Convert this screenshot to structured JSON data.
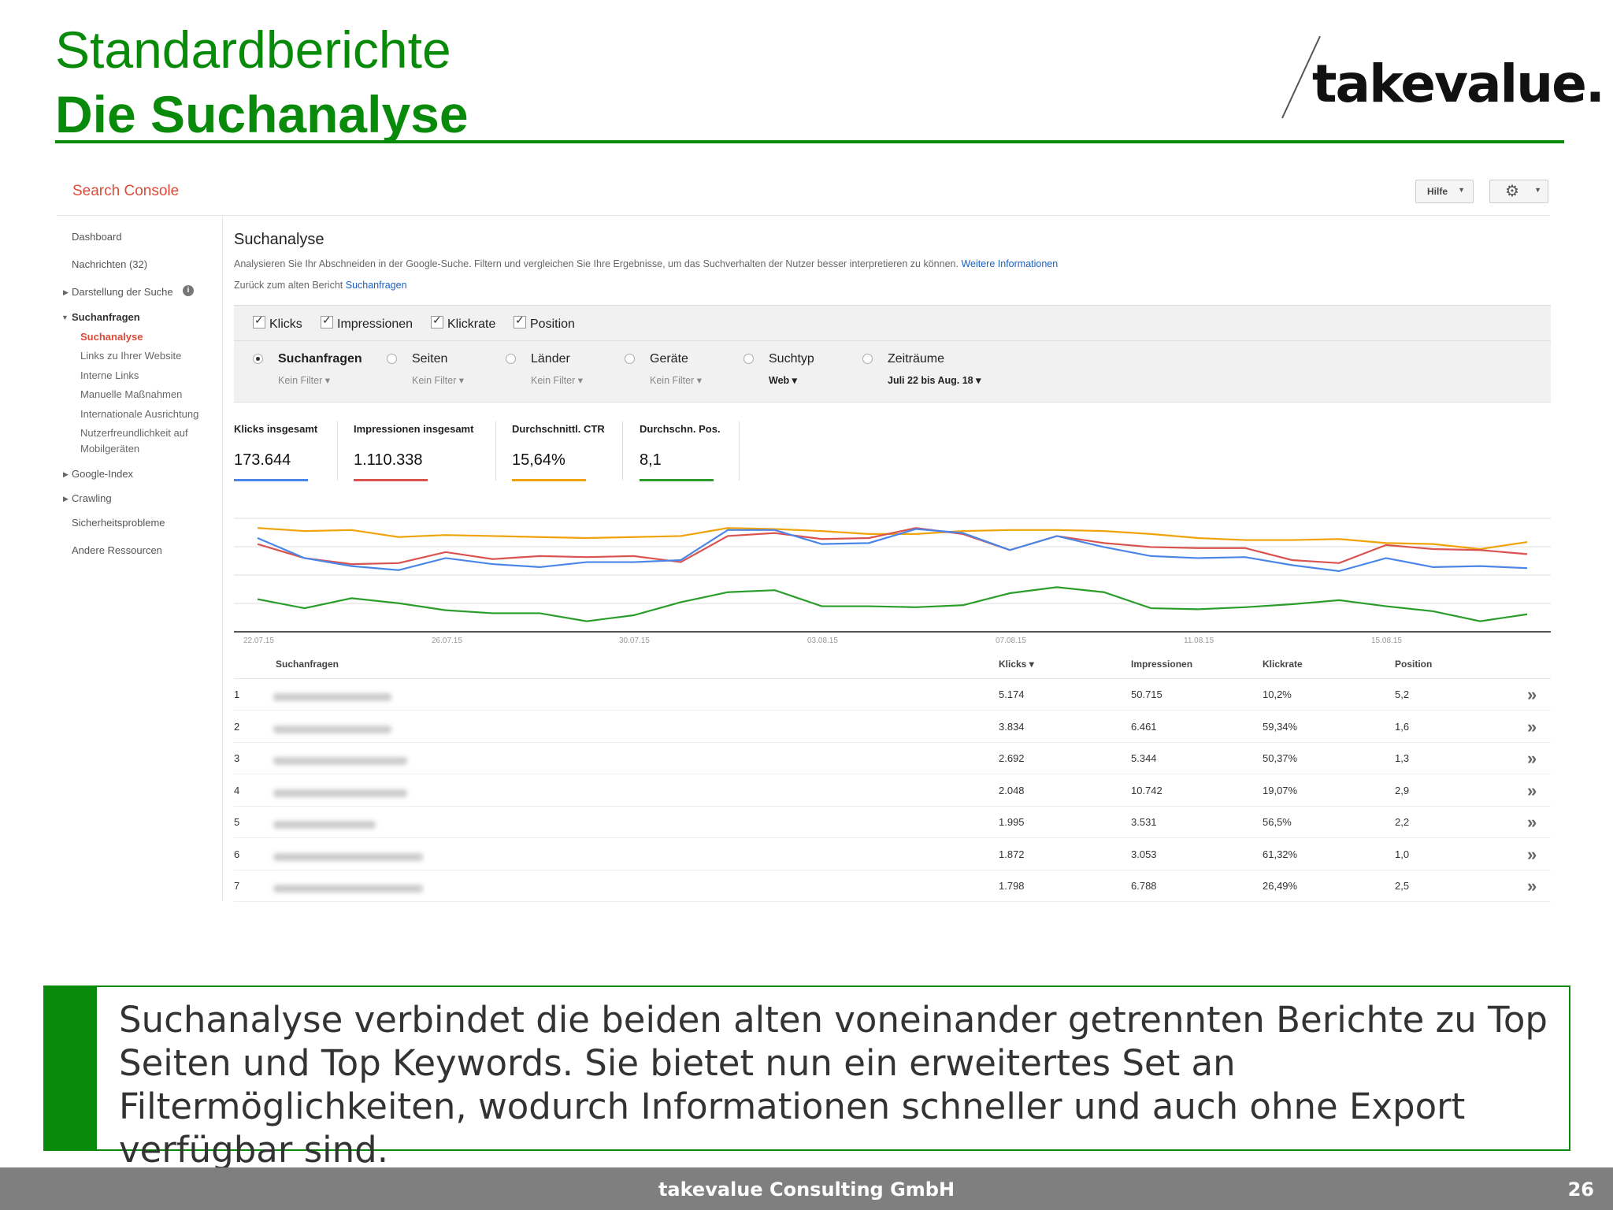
{
  "slide": {
    "title_line1": "Standardberichte",
    "title_line2": "Die Suchanalyse",
    "logo_text": "takevalue.",
    "callout": "Suchanalyse verbindet die beiden alten voneinander getrennten Berichte zu Top Seiten und Top Keywords. Sie bietet nun ein erweitertes Set an Filtermöglichkeiten, wodurch Informationen schneller und auch ohne Export verfügbar sind.",
    "footer": "takevalue Consulting GmbH",
    "page_number": "26",
    "accent_color": "#0a8a0a"
  },
  "console": {
    "brand": "Search Console",
    "help_label": "Hilfe",
    "settings_icon": "gear-icon"
  },
  "sidebar": {
    "dashboard": "Dashboard",
    "messages": "Nachrichten (32)",
    "search_appearance": "Darstellung der Suche",
    "search_traffic": "Suchanfragen",
    "search_analysis": "Suchanalyse",
    "links": "Links zu Ihrer Website",
    "internal_links": "Interne Links",
    "manual_actions": "Manuelle Maßnahmen",
    "intl_targeting": "Internationale Ausrichtung",
    "mobile_line1": "Nutzerfreundlichkeit auf",
    "mobile_line2": "Mobilgeräten",
    "google_index": "Google-Index",
    "crawling": "Crawling",
    "security": "Sicherheitsprobleme",
    "other": "Andere Ressourcen"
  },
  "main": {
    "title": "Suchanalyse",
    "description": "Analysieren Sie Ihr Abschneiden in der Google-Suche. Filtern und vergleichen Sie Ihre Ergebnisse, um das Suchverhalten der Nutzer besser interpretieren zu können.",
    "more_info": "Weitere Informationen",
    "back_text": "Zurück zum alten Bericht",
    "back_link": "Suchanfragen"
  },
  "metrics": {
    "clicks": "Klicks",
    "impressions": "Impressionen",
    "ctr": "Klickrate",
    "position": "Position"
  },
  "dimensions": {
    "queries": {
      "label": "Suchanfragen",
      "filter": "Kein Filter"
    },
    "pages": {
      "label": "Seiten",
      "filter": "Kein Filter"
    },
    "countries": {
      "label": "Länder",
      "filter": "Kein Filter"
    },
    "devices": {
      "label": "Geräte",
      "filter": "Kein Filter"
    },
    "search_type": {
      "label": "Suchtyp",
      "filter": "Web"
    },
    "dates": {
      "label": "Zeiträume",
      "filter": "Juli 22 bis Aug. 18"
    }
  },
  "totals": {
    "clicks_label": "Klicks insgesamt",
    "clicks_value": "173.644",
    "clicks_color": "#4a86e8",
    "impr_label": "Impressionen insgesamt",
    "impr_value": "1.110.338",
    "impr_color": "#d9534f",
    "ctr_label": "Durchschnittl. CTR",
    "ctr_value": "15,64%",
    "ctr_color": "#f0a30a",
    "pos_label": "Durchschn. Pos.",
    "pos_value": "8,1",
    "pos_color": "#2a9d2a"
  },
  "chart_data": {
    "type": "line",
    "x_tick_labels": [
      "22.07.15",
      "26.07.15",
      "30.07.15",
      "03.08.15",
      "07.08.15",
      "11.08.15",
      "15.08.15"
    ],
    "x": [
      "22.07.15",
      "23.07.15",
      "24.07.15",
      "25.07.15",
      "26.07.15",
      "27.07.15",
      "28.07.15",
      "29.07.15",
      "30.07.15",
      "31.07.15",
      "01.08.15",
      "02.08.15",
      "03.08.15",
      "04.08.15",
      "05.08.15",
      "06.08.15",
      "07.08.15",
      "08.08.15",
      "09.08.15",
      "10.08.15",
      "11.08.15",
      "12.08.15",
      "13.08.15",
      "14.08.15",
      "15.08.15",
      "16.08.15",
      "17.08.15",
      "18.08.15"
    ],
    "series": [
      {
        "color": "#f0a30a",
        "values": [
          0.88,
          0.85,
          0.86,
          0.79,
          0.81,
          0.8,
          0.79,
          0.78,
          0.79,
          0.8,
          0.88,
          0.87,
          0.85,
          0.82,
          0.82,
          0.85,
          0.86,
          0.86,
          0.85,
          0.82,
          0.78,
          0.76,
          0.76,
          0.77,
          0.73,
          0.72,
          0.67,
          0.74
        ]
      },
      {
        "color": "#d9534f",
        "values": [
          0.72,
          0.58,
          0.52,
          0.53,
          0.64,
          0.57,
          0.6,
          0.59,
          0.6,
          0.54,
          0.8,
          0.83,
          0.77,
          0.78,
          0.88,
          0.82,
          0.66,
          0.8,
          0.73,
          0.69,
          0.68,
          0.68,
          0.56,
          0.53,
          0.71,
          0.67,
          0.66,
          0.62
        ]
      },
      {
        "color": "#4a86e8",
        "values": [
          0.78,
          0.58,
          0.5,
          0.46,
          0.58,
          0.52,
          0.49,
          0.54,
          0.54,
          0.56,
          0.86,
          0.86,
          0.72,
          0.73,
          0.87,
          0.83,
          0.66,
          0.8,
          0.69,
          0.6,
          0.58,
          0.59,
          0.51,
          0.45,
          0.58,
          0.49,
          0.5,
          0.48
        ]
      },
      {
        "color": "#2a9d2a",
        "values": [
          0.17,
          0.08,
          0.18,
          0.13,
          0.06,
          0.03,
          0.03,
          -0.05,
          0.01,
          0.14,
          0.24,
          0.26,
          0.1,
          0.1,
          0.09,
          0.11,
          0.23,
          0.29,
          0.24,
          0.08,
          0.07,
          0.09,
          0.12,
          0.16,
          0.1,
          0.05,
          -0.05,
          0.02
        ]
      }
    ]
  },
  "table": {
    "headers": {
      "query": "Suchanfragen",
      "clicks": "Klicks ▾",
      "impressions": "Impressionen",
      "ctr": "Klickrate",
      "position": "Position"
    },
    "rows": [
      {
        "n": "1",
        "clicks": "5.174",
        "impressions": "50.715",
        "ctr": "10,2%",
        "position": "5,2"
      },
      {
        "n": "2",
        "clicks": "3.834",
        "impressions": "6.461",
        "ctr": "59,34%",
        "position": "1,6"
      },
      {
        "n": "3",
        "clicks": "2.692",
        "impressions": "5.344",
        "ctr": "50,37%",
        "position": "1,3"
      },
      {
        "n": "4",
        "clicks": "2.048",
        "impressions": "10.742",
        "ctr": "19,07%",
        "position": "2,9"
      },
      {
        "n": "5",
        "clicks": "1.995",
        "impressions": "3.531",
        "ctr": "56,5%",
        "position": "2,2"
      },
      {
        "n": "6",
        "clicks": "1.872",
        "impressions": "3.053",
        "ctr": "61,32%",
        "position": "1,0"
      },
      {
        "n": "7",
        "clicks": "1.798",
        "impressions": "6.788",
        "ctr": "26,49%",
        "position": "2,5"
      }
    ],
    "row_action_icon": "double-chevron-right-icon"
  }
}
